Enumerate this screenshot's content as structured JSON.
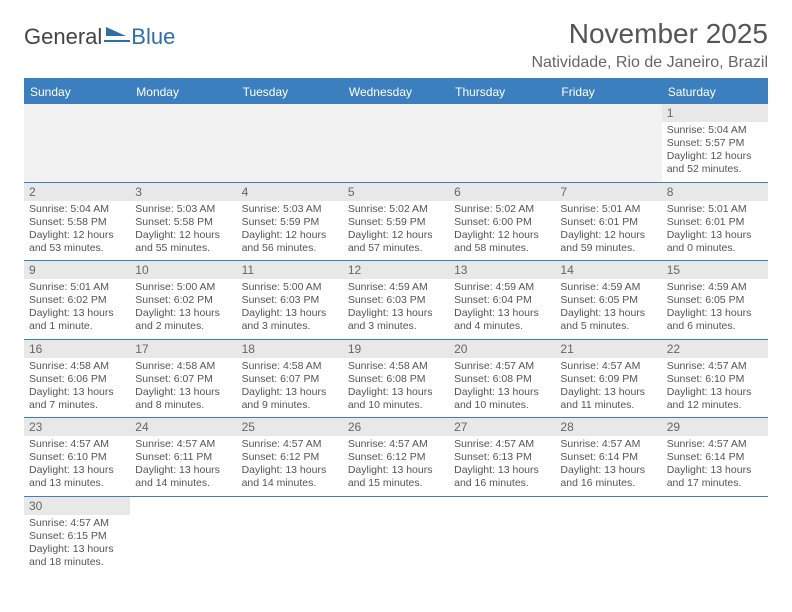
{
  "brand": {
    "part1": "General",
    "part2": "Blue"
  },
  "title": "November 2025",
  "subtitle": "Natividade, Rio de Janeiro, Brazil",
  "weekday_labels": [
    "Sunday",
    "Monday",
    "Tuesday",
    "Wednesday",
    "Thursday",
    "Friday",
    "Saturday"
  ],
  "colors": {
    "accent": "#3b7fbf",
    "header_bg": "#3b7fbf",
    "daynum_bg": "#e8e8e8",
    "empty_bg": "#f2f2f2",
    "text": "#555555"
  },
  "weeks": [
    [
      null,
      null,
      null,
      null,
      null,
      null,
      {
        "n": "1",
        "sunrise": "Sunrise: 5:04 AM",
        "sunset": "Sunset: 5:57 PM",
        "daylight1": "Daylight: 12 hours",
        "daylight2": "and 52 minutes."
      }
    ],
    [
      {
        "n": "2",
        "sunrise": "Sunrise: 5:04 AM",
        "sunset": "Sunset: 5:58 PM",
        "daylight1": "Daylight: 12 hours",
        "daylight2": "and 53 minutes."
      },
      {
        "n": "3",
        "sunrise": "Sunrise: 5:03 AM",
        "sunset": "Sunset: 5:58 PM",
        "daylight1": "Daylight: 12 hours",
        "daylight2": "and 55 minutes."
      },
      {
        "n": "4",
        "sunrise": "Sunrise: 5:03 AM",
        "sunset": "Sunset: 5:59 PM",
        "daylight1": "Daylight: 12 hours",
        "daylight2": "and 56 minutes."
      },
      {
        "n": "5",
        "sunrise": "Sunrise: 5:02 AM",
        "sunset": "Sunset: 5:59 PM",
        "daylight1": "Daylight: 12 hours",
        "daylight2": "and 57 minutes."
      },
      {
        "n": "6",
        "sunrise": "Sunrise: 5:02 AM",
        "sunset": "Sunset: 6:00 PM",
        "daylight1": "Daylight: 12 hours",
        "daylight2": "and 58 minutes."
      },
      {
        "n": "7",
        "sunrise": "Sunrise: 5:01 AM",
        "sunset": "Sunset: 6:01 PM",
        "daylight1": "Daylight: 12 hours",
        "daylight2": "and 59 minutes."
      },
      {
        "n": "8",
        "sunrise": "Sunrise: 5:01 AM",
        "sunset": "Sunset: 6:01 PM",
        "daylight1": "Daylight: 13 hours",
        "daylight2": "and 0 minutes."
      }
    ],
    [
      {
        "n": "9",
        "sunrise": "Sunrise: 5:01 AM",
        "sunset": "Sunset: 6:02 PM",
        "daylight1": "Daylight: 13 hours",
        "daylight2": "and 1 minute."
      },
      {
        "n": "10",
        "sunrise": "Sunrise: 5:00 AM",
        "sunset": "Sunset: 6:02 PM",
        "daylight1": "Daylight: 13 hours",
        "daylight2": "and 2 minutes."
      },
      {
        "n": "11",
        "sunrise": "Sunrise: 5:00 AM",
        "sunset": "Sunset: 6:03 PM",
        "daylight1": "Daylight: 13 hours",
        "daylight2": "and 3 minutes."
      },
      {
        "n": "12",
        "sunrise": "Sunrise: 4:59 AM",
        "sunset": "Sunset: 6:03 PM",
        "daylight1": "Daylight: 13 hours",
        "daylight2": "and 3 minutes."
      },
      {
        "n": "13",
        "sunrise": "Sunrise: 4:59 AM",
        "sunset": "Sunset: 6:04 PM",
        "daylight1": "Daylight: 13 hours",
        "daylight2": "and 4 minutes."
      },
      {
        "n": "14",
        "sunrise": "Sunrise: 4:59 AM",
        "sunset": "Sunset: 6:05 PM",
        "daylight1": "Daylight: 13 hours",
        "daylight2": "and 5 minutes."
      },
      {
        "n": "15",
        "sunrise": "Sunrise: 4:59 AM",
        "sunset": "Sunset: 6:05 PM",
        "daylight1": "Daylight: 13 hours",
        "daylight2": "and 6 minutes."
      }
    ],
    [
      {
        "n": "16",
        "sunrise": "Sunrise: 4:58 AM",
        "sunset": "Sunset: 6:06 PM",
        "daylight1": "Daylight: 13 hours",
        "daylight2": "and 7 minutes."
      },
      {
        "n": "17",
        "sunrise": "Sunrise: 4:58 AM",
        "sunset": "Sunset: 6:07 PM",
        "daylight1": "Daylight: 13 hours",
        "daylight2": "and 8 minutes."
      },
      {
        "n": "18",
        "sunrise": "Sunrise: 4:58 AM",
        "sunset": "Sunset: 6:07 PM",
        "daylight1": "Daylight: 13 hours",
        "daylight2": "and 9 minutes."
      },
      {
        "n": "19",
        "sunrise": "Sunrise: 4:58 AM",
        "sunset": "Sunset: 6:08 PM",
        "daylight1": "Daylight: 13 hours",
        "daylight2": "and 10 minutes."
      },
      {
        "n": "20",
        "sunrise": "Sunrise: 4:57 AM",
        "sunset": "Sunset: 6:08 PM",
        "daylight1": "Daylight: 13 hours",
        "daylight2": "and 10 minutes."
      },
      {
        "n": "21",
        "sunrise": "Sunrise: 4:57 AM",
        "sunset": "Sunset: 6:09 PM",
        "daylight1": "Daylight: 13 hours",
        "daylight2": "and 11 minutes."
      },
      {
        "n": "22",
        "sunrise": "Sunrise: 4:57 AM",
        "sunset": "Sunset: 6:10 PM",
        "daylight1": "Daylight: 13 hours",
        "daylight2": "and 12 minutes."
      }
    ],
    [
      {
        "n": "23",
        "sunrise": "Sunrise: 4:57 AM",
        "sunset": "Sunset: 6:10 PM",
        "daylight1": "Daylight: 13 hours",
        "daylight2": "and 13 minutes."
      },
      {
        "n": "24",
        "sunrise": "Sunrise: 4:57 AM",
        "sunset": "Sunset: 6:11 PM",
        "daylight1": "Daylight: 13 hours",
        "daylight2": "and 14 minutes."
      },
      {
        "n": "25",
        "sunrise": "Sunrise: 4:57 AM",
        "sunset": "Sunset: 6:12 PM",
        "daylight1": "Daylight: 13 hours",
        "daylight2": "and 14 minutes."
      },
      {
        "n": "26",
        "sunrise": "Sunrise: 4:57 AM",
        "sunset": "Sunset: 6:12 PM",
        "daylight1": "Daylight: 13 hours",
        "daylight2": "and 15 minutes."
      },
      {
        "n": "27",
        "sunrise": "Sunrise: 4:57 AM",
        "sunset": "Sunset: 6:13 PM",
        "daylight1": "Daylight: 13 hours",
        "daylight2": "and 16 minutes."
      },
      {
        "n": "28",
        "sunrise": "Sunrise: 4:57 AM",
        "sunset": "Sunset: 6:14 PM",
        "daylight1": "Daylight: 13 hours",
        "daylight2": "and 16 minutes."
      },
      {
        "n": "29",
        "sunrise": "Sunrise: 4:57 AM",
        "sunset": "Sunset: 6:14 PM",
        "daylight1": "Daylight: 13 hours",
        "daylight2": "and 17 minutes."
      }
    ],
    [
      {
        "n": "30",
        "sunrise": "Sunrise: 4:57 AM",
        "sunset": "Sunset: 6:15 PM",
        "daylight1": "Daylight: 13 hours",
        "daylight2": "and 18 minutes."
      },
      null,
      null,
      null,
      null,
      null,
      null
    ]
  ]
}
